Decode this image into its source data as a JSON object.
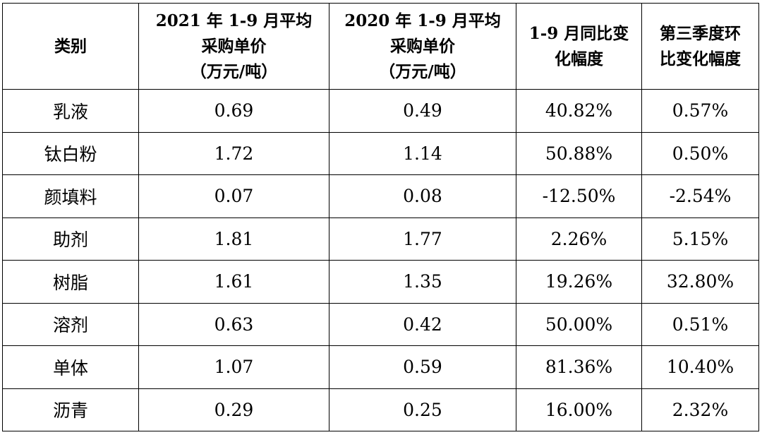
{
  "table": {
    "headers": [
      {
        "lines": [
          "类别"
        ]
      },
      {
        "lines": [
          "2021 年 1-9 月平均",
          "采购单价",
          "（万元/吨）"
        ]
      },
      {
        "lines": [
          "2020 年 1-9 月平均",
          "采购单价",
          "（万元/吨）"
        ]
      },
      {
        "lines": [
          "1-9 月同比变",
          "化幅度"
        ]
      },
      {
        "lines": [
          "第三季度环",
          "比变化幅度"
        ]
      }
    ],
    "rows": [
      [
        "乳液",
        "0.69",
        "0.49",
        "40.82%",
        "0.57%"
      ],
      [
        "钛白粉",
        "1.72",
        "1.14",
        "50.88%",
        "0.50%"
      ],
      [
        "颜填料",
        "0.07",
        "0.08",
        "-12.50%",
        "-2.54%"
      ],
      [
        "助剂",
        "1.81",
        "1.77",
        "2.26%",
        "5.15%"
      ],
      [
        "树脂",
        "1.61",
        "1.35",
        "19.26%",
        "32.80%"
      ],
      [
        "溶剂",
        "0.63",
        "0.42",
        "50.00%",
        "0.51%"
      ],
      [
        "单体",
        "1.07",
        "0.59",
        "81.36%",
        "10.40%"
      ],
      [
        "沥青",
        "0.29",
        "0.25",
        "16.00%",
        "2.32%"
      ]
    ]
  }
}
